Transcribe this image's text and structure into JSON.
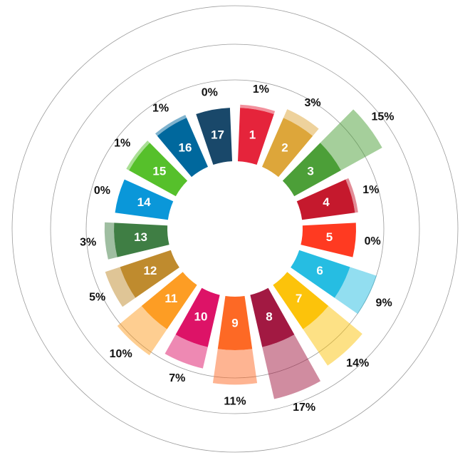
{
  "chart_data": {
    "type": "polar_bar",
    "categories": [
      "1",
      "2",
      "3",
      "4",
      "5",
      "6",
      "7",
      "8",
      "9",
      "10",
      "11",
      "12",
      "13",
      "14",
      "15",
      "16",
      "17"
    ],
    "values": [
      1,
      3,
      15,
      1,
      0,
      9,
      14,
      17,
      11,
      7,
      10,
      5,
      3,
      0,
      1,
      1,
      0
    ],
    "value_labels": [
      "1%",
      "3%",
      "15%",
      "1%",
      "0%",
      "9%",
      "14%",
      "17%",
      "11%",
      "7%",
      "10%",
      "5%",
      "3%",
      "0%",
      "1%",
      "1%",
      "0%"
    ],
    "colors": [
      "#e5243b",
      "#dda63a",
      "#4c9f38",
      "#c5192d",
      "#ff3a21",
      "#26bde2",
      "#fcc30b",
      "#a21942",
      "#fd6925",
      "#dd1367",
      "#fd9d24",
      "#bf8b2e",
      "#3f7e44",
      "#0a97d9",
      "#56c02b",
      "#00689d",
      "#19486a"
    ]
  }
}
